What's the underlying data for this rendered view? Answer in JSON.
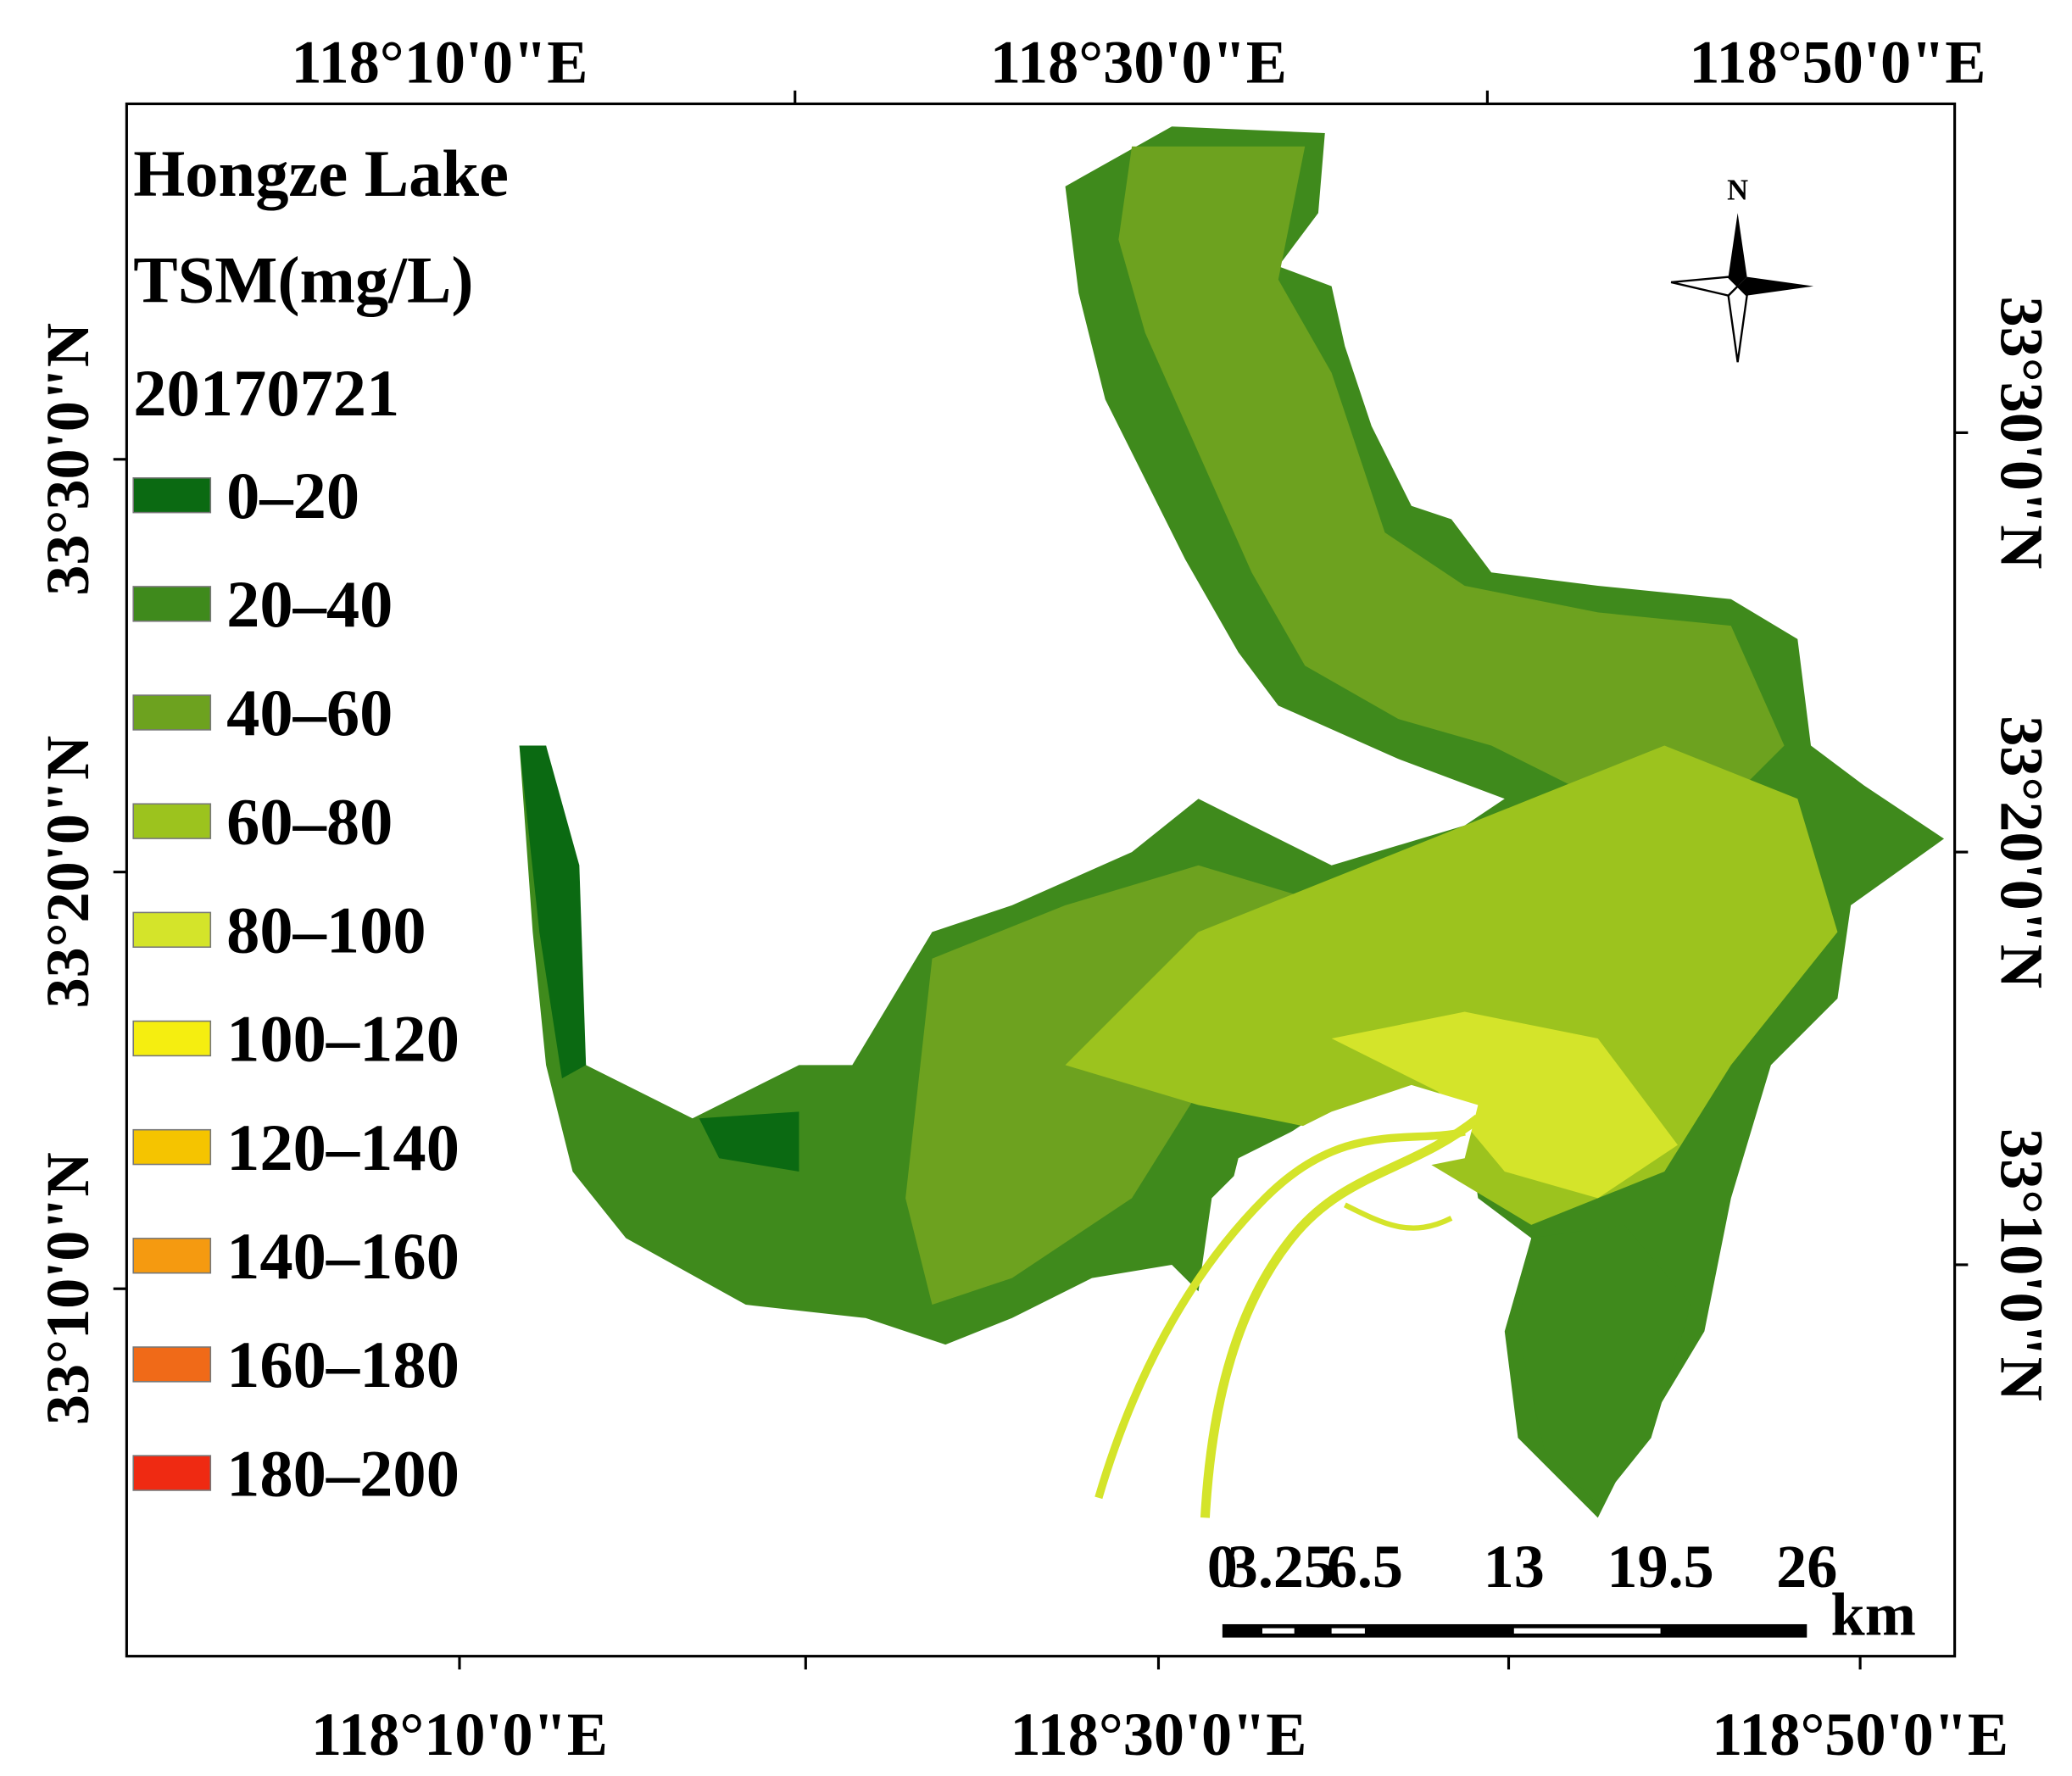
{
  "map": {
    "title": [
      "Hongze Lake",
      "TSM(mg/L)",
      "20170721"
    ],
    "legend": [
      {
        "label": "0–20",
        "color": "#0b6a12"
      },
      {
        "label": "20–40",
        "color": "#3f8a1c"
      },
      {
        "label": "40–60",
        "color": "#6da21f"
      },
      {
        "label": "60–80",
        "color": "#9cc31e"
      },
      {
        "label": "80–100",
        "color": "#d4e42a"
      },
      {
        "label": "100–120",
        "color": "#f5ee10"
      },
      {
        "label": "120–140",
        "color": "#f5c400"
      },
      {
        "label": "140–160",
        "color": "#f59a10"
      },
      {
        "label": "160–180",
        "color": "#f06a18"
      },
      {
        "label": "180–200",
        "color": "#ef2a12"
      }
    ],
    "top_labels": [
      "118°10'0\"E",
      "118°30'0\"E",
      "118°50'0\"E"
    ],
    "bottom_labels": [
      "118°10'0\"E",
      "118°30'0\"E",
      "118°50'0\"E"
    ],
    "left_labels": [
      "33°30'0\"N",
      "33°20'0\"N",
      "33°10'0\"N"
    ],
    "right_labels": [
      "33°30'0\"N",
      "33°20'0\"N",
      "33°10'0\"N"
    ],
    "north": "N",
    "scale": {
      "labels": [
        "0",
        "3.25",
        "6.5",
        "13",
        "19.5",
        "26"
      ],
      "unit": "km"
    }
  }
}
